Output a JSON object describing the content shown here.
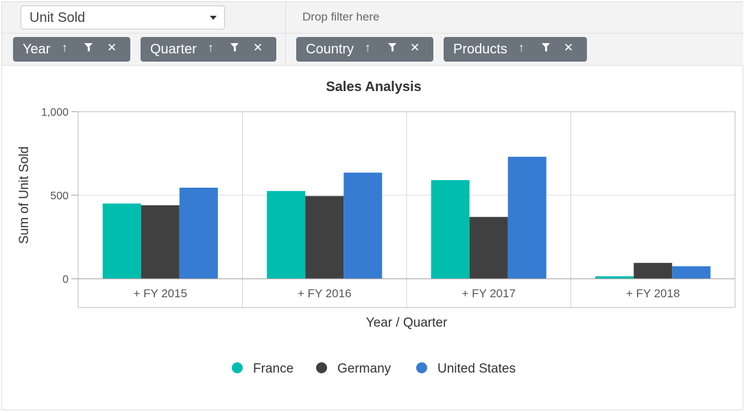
{
  "toolbar": {
    "value_field": "Unit Sold",
    "filter_placeholder": "Drop filter here",
    "row_fields": [
      {
        "label": "Year"
      },
      {
        "label": "Quarter"
      }
    ],
    "column_fields": [
      {
        "label": "Country"
      },
      {
        "label": "Products"
      }
    ],
    "icons": {
      "sort": "arrow-up-icon",
      "filter": "filter-icon",
      "remove": "close-icon"
    }
  },
  "chart_data": {
    "type": "bar",
    "title": "Sales Analysis",
    "xlabel": "Year / Quarter",
    "ylabel": "Sum of Unit Sold",
    "categories": [
      "+ FY 2015",
      "+ FY 2016",
      "+ FY 2017",
      "+ FY 2018"
    ],
    "series": [
      {
        "name": "France",
        "color": "#00bdae",
        "values": [
          450,
          525,
          590,
          15
        ]
      },
      {
        "name": "Germany",
        "color": "#404041",
        "values": [
          440,
          495,
          370,
          95
        ]
      },
      {
        "name": "United States",
        "color": "#357cd2",
        "values": [
          545,
          635,
          730,
          75
        ]
      }
    ],
    "ylim": [
      0,
      1000
    ],
    "yticks": [
      0,
      500,
      1000
    ],
    "ytick_labels": [
      "0",
      "500",
      "1,000"
    ],
    "grid": true,
    "legend_position": "bottom"
  }
}
